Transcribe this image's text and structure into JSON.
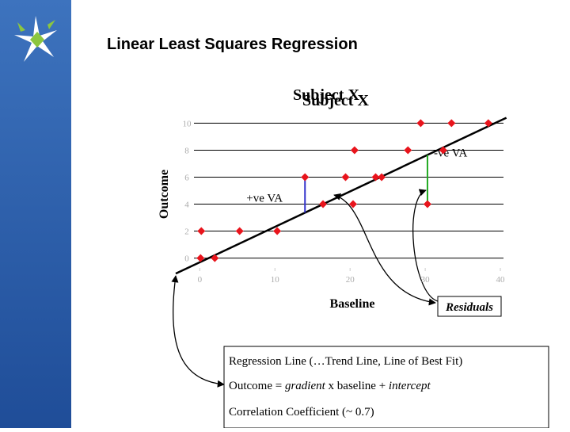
{
  "header": {
    "title": "Linear Least Squares Regression"
  },
  "chart_data": {
    "type": "scatter",
    "title": "Subject X",
    "y_label": "Outcome",
    "x_label": "Baseline",
    "color": "#e8141c",
    "x": [
      0.1,
      2,
      0.2,
      5.3,
      10.3,
      14,
      16.4,
      19.4,
      20.4,
      20.6,
      23.4,
      24.2,
      27.7,
      29.4,
      30.3,
      32.4,
      33.5,
      38.4
    ],
    "y": [
      0,
      0,
      2,
      2,
      2,
      6,
      4,
      6,
      4,
      8,
      6,
      6,
      8,
      10,
      4,
      8,
      10,
      10
    ],
    "xlim": [
      -3.2,
      42
    ],
    "ylim": [
      -1.2,
      10.2
    ],
    "xticks": [
      0,
      10,
      20,
      30,
      40
    ],
    "yticks": [
      0,
      2,
      4,
      6,
      8,
      10
    ],
    "grid": true,
    "regression": {
      "x": [
        -3.2,
        40.8
      ],
      "y": [
        -1.15,
        10.4
      ]
    },
    "residuals": [
      {
        "label": "+ve VA",
        "point": 5,
        "color": "#3333cc"
      },
      {
        "label": "-ve VA",
        "point": 14,
        "color": "#22aa22"
      }
    ],
    "residuals_label": "Residuals"
  },
  "textbox": {
    "line1": "Regression Line (…Trend Line, Line of Best Fit)",
    "line2": [
      "Outcome = ",
      "gradient",
      " x baseline + ",
      "intercept"
    ],
    "line3": "Correlation Coefficient (~ 0.7)"
  }
}
